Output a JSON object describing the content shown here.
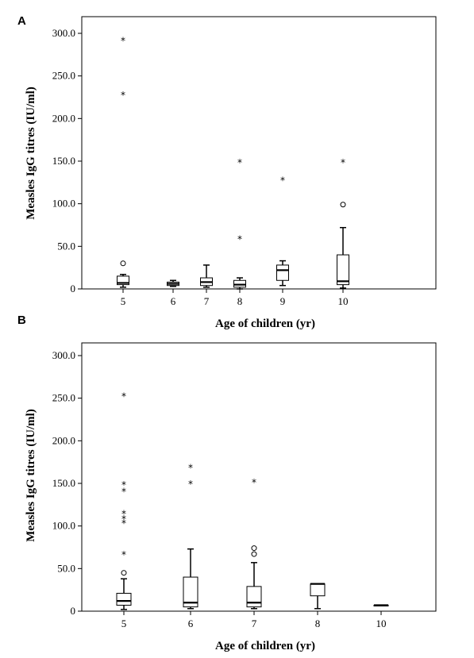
{
  "chart_data": [
    {
      "panel": "A",
      "type": "box",
      "xlabel": "Age of children (yr)",
      "ylabel": "Measles IgG titres (IU/ml)",
      "ylim": [
        0,
        300
      ],
      "yticks": [
        "0",
        "50.0",
        "100.0",
        "150.0",
        "200.0",
        "250.0",
        "300.0"
      ],
      "yticks_values": [
        0,
        50,
        100,
        150,
        200,
        250,
        300
      ],
      "categories": [
        "5",
        "6",
        "7",
        "8",
        "9",
        "10"
      ],
      "boxes": [
        {
          "min": 2,
          "q1": 5,
          "median": 7,
          "q3": 15,
          "max": 17,
          "outliers": [
            30
          ],
          "extremes": [
            229,
            293
          ]
        },
        {
          "min": 3,
          "q1": 4,
          "median": 6,
          "q3": 8,
          "max": 10,
          "outliers": [],
          "extremes": []
        },
        {
          "min": 2,
          "q1": 4,
          "median": 8,
          "q3": 13,
          "max": 28,
          "outliers": [],
          "extremes": []
        },
        {
          "min": 0,
          "q1": 2,
          "median": 5,
          "q3": 10,
          "max": 13,
          "outliers": [],
          "extremes": [
            60,
            150
          ]
        },
        {
          "min": 4,
          "q1": 10,
          "median": 22,
          "q3": 28,
          "max": 33,
          "outliers": [],
          "extremes": [
            129
          ]
        },
        {
          "min": 1,
          "q1": 5,
          "median": 9,
          "q3": 40,
          "max": 72,
          "outliers": [
            99
          ],
          "extremes": [
            150
          ]
        }
      ]
    },
    {
      "panel": "B",
      "type": "box",
      "xlabel": "Age of children (yr)",
      "ylabel": "Measles IgG titres (IU/ml)",
      "ylim": [
        0,
        300
      ],
      "yticks": [
        "0",
        "50.0",
        "100.0",
        "150.0",
        "200.0",
        "250.0",
        "300.0"
      ],
      "yticks_values": [
        0,
        50,
        100,
        150,
        200,
        250,
        300
      ],
      "categories": [
        "5",
        "6",
        "7",
        "8",
        "10"
      ],
      "boxes": [
        {
          "min": 2,
          "q1": 7,
          "median": 12,
          "q3": 21,
          "max": 38,
          "outliers": [
            45
          ],
          "extremes": [
            68,
            105,
            110,
            116,
            142,
            150,
            254
          ]
        },
        {
          "min": 3,
          "q1": 5,
          "median": 10,
          "q3": 40,
          "max": 73,
          "outliers": [],
          "extremes": [
            151,
            170
          ]
        },
        {
          "min": 3,
          "q1": 5,
          "median": 10,
          "q3": 29,
          "max": 57,
          "outliers": [
            67,
            74
          ],
          "extremes": [
            153
          ]
        },
        {
          "min": 3,
          "q1": 18,
          "median": 32,
          "q3": 32,
          "max": 32,
          "outliers": [],
          "extremes": []
        },
        {
          "min": 7,
          "q1": 7,
          "median": 7,
          "q3": 7,
          "max": 7,
          "outliers": [],
          "extremes": []
        }
      ]
    }
  ]
}
